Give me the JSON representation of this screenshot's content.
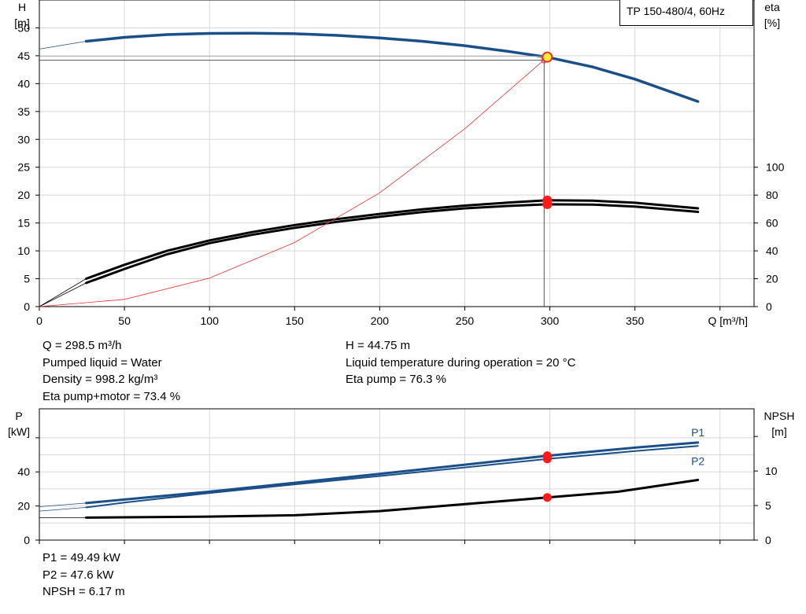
{
  "chart_data": [
    {
      "type": "line",
      "title": "TP 150-480/4, 60Hz",
      "xlabel": "Q [m³/h]",
      "ylabel_left": [
        "H",
        "[m]"
      ],
      "ylabel_right": [
        "eta",
        "[%]"
      ],
      "xlim": [
        0,
        420
      ],
      "ylim_left": [
        0,
        55
      ],
      "ylim_right": [
        0,
        100
      ],
      "xticks": [
        0,
        50,
        100,
        150,
        200,
        250,
        300,
        350
      ],
      "yticks_left": [
        0,
        5,
        10,
        15,
        20,
        25,
        30,
        35,
        40,
        45,
        50
      ],
      "yticks_right": [
        0,
        20,
        40,
        60,
        80,
        100
      ],
      "grid": true,
      "series": [
        {
          "axis": "left",
          "color": "#1a4f8a",
          "width": 3.5,
          "x": [
            27.5,
            50,
            75,
            100,
            125,
            150,
            175,
            200,
            225,
            250,
            275,
            298.5,
            325,
            350,
            387
          ],
          "y": [
            47.6,
            48.3,
            48.8,
            49.0,
            49.05,
            48.95,
            48.65,
            48.2,
            47.6,
            46.8,
            45.8,
            44.75,
            43.0,
            40.8,
            36.8
          ]
        },
        {
          "axis": "left",
          "color": "#1a4f8a",
          "width": 0.8,
          "x": [
            0,
            27.5
          ],
          "y": [
            46.2,
            47.6
          ]
        },
        {
          "axis": "right",
          "color": "#000000",
          "width": 3.0,
          "x": [
            27.5,
            50,
            75,
            100,
            125,
            150,
            175,
            200,
            225,
            250,
            275,
            298.5,
            325,
            350,
            387
          ],
          "y": [
            20.0,
            30.0,
            40.0,
            47.5,
            53.5,
            58.5,
            62.8,
            66.5,
            69.8,
            72.5,
            74.6,
            76.3,
            76.0,
            74.5,
            70.5
          ]
        },
        {
          "axis": "right",
          "color": "#000000",
          "width": 3.0,
          "x": [
            27.5,
            50,
            75,
            100,
            125,
            150,
            175,
            200,
            225,
            250,
            275,
            298.5,
            325,
            350,
            387
          ],
          "y": [
            17.0,
            27.0,
            37.5,
            45.5,
            51.5,
            56.5,
            60.8,
            64.5,
            67.8,
            70.5,
            72.2,
            73.4,
            73.2,
            71.8,
            68.0
          ]
        },
        {
          "axis": "right",
          "color": "#000000",
          "width": 0.8,
          "x": [
            0,
            27.5
          ],
          "y": [
            0,
            20.0
          ]
        },
        {
          "axis": "right",
          "color": "#000000",
          "width": 0.8,
          "x": [
            0,
            27.5
          ],
          "y": [
            0,
            17.0
          ]
        },
        {
          "axis": "left",
          "color": "#e83030",
          "width": 0.8,
          "x": [
            0,
            50,
            100,
            150,
            200,
            250,
            298.5
          ],
          "y": [
            0,
            1.3,
            5.1,
            11.5,
            20.4,
            31.9,
            44.75
          ]
        }
      ],
      "operating_point": {
        "q": 298.5,
        "h": 44.75,
        "eta_pump": 76.3,
        "eta_total": 73.4
      },
      "readouts": {
        "q": "Q = 298.5 m³/h",
        "liquid": "Pumped liquid = Water",
        "density": "Density = 998.2 kg/m³",
        "eta_total": "Eta pump+motor = 73.4 %",
        "h": "H = 44.75 m",
        "temperature": "Liquid temperature during operation = 20 °C",
        "eta_pump": "Eta pump = 76.3 %"
      }
    },
    {
      "type": "line",
      "xlim": [
        0,
        420
      ],
      "ylabel_left": [
        "P",
        "[kW]"
      ],
      "ylabel_right": [
        "NPSH",
        "[m]"
      ],
      "ylim_left": [
        0,
        77
      ],
      "ylim_right": [
        0,
        19
      ],
      "yticks_left": [
        0,
        20,
        40
      ],
      "yticks_right": [
        0,
        5,
        10
      ],
      "grid": true,
      "series_labels": {
        "p1": "P1",
        "p2": "P2"
      },
      "series": [
        {
          "name": "P1",
          "axis": "left",
          "color": "#1a4f8a",
          "width": 3.0,
          "x": [
            27.5,
            50,
            100,
            150,
            200,
            250,
            298.5,
            350,
            387
          ],
          "y": [
            21.7,
            23.8,
            28.4,
            33.6,
            38.8,
            44.2,
            49.49,
            54.2,
            57.2
          ]
        },
        {
          "name": "P2",
          "axis": "left",
          "color": "#1a4f8a",
          "width": 2.0,
          "x": [
            27.5,
            50,
            100,
            150,
            200,
            250,
            298.5,
            350,
            387
          ],
          "y": [
            19.2,
            22.0,
            27.6,
            32.7,
            37.6,
            42.6,
            47.6,
            52.2,
            55.2
          ]
        },
        {
          "axis": "left",
          "color": "#1a4f8a",
          "width": 0.8,
          "x": [
            0,
            27.5
          ],
          "y": [
            19.6,
            21.7
          ]
        },
        {
          "axis": "left",
          "color": "#1a4f8a",
          "width": 0.8,
          "x": [
            0,
            27.5
          ],
          "y": [
            17.0,
            19.2
          ]
        },
        {
          "axis": "right",
          "color": "#000000",
          "width": 3.0,
          "x": [
            27.5,
            50,
            100,
            150,
            200,
            250,
            298.5,
            340,
            387
          ],
          "y": [
            3.25,
            3.3,
            3.4,
            3.6,
            4.2,
            5.2,
            6.17,
            7.0,
            8.7
          ]
        },
        {
          "axis": "right",
          "color": "#000000",
          "width": 0.8,
          "x": [
            0,
            27.5
          ],
          "y": [
            3.25,
            3.25
          ]
        }
      ],
      "operating_point": {
        "q": 298.5,
        "p1": 49.49,
        "p2": 47.6,
        "npsh": 6.17
      },
      "readouts": {
        "p1": "P1 = 49.49 kW",
        "p2": "P2 = 47.6 kW",
        "npsh": "NPSH = 6.17 m"
      }
    }
  ]
}
